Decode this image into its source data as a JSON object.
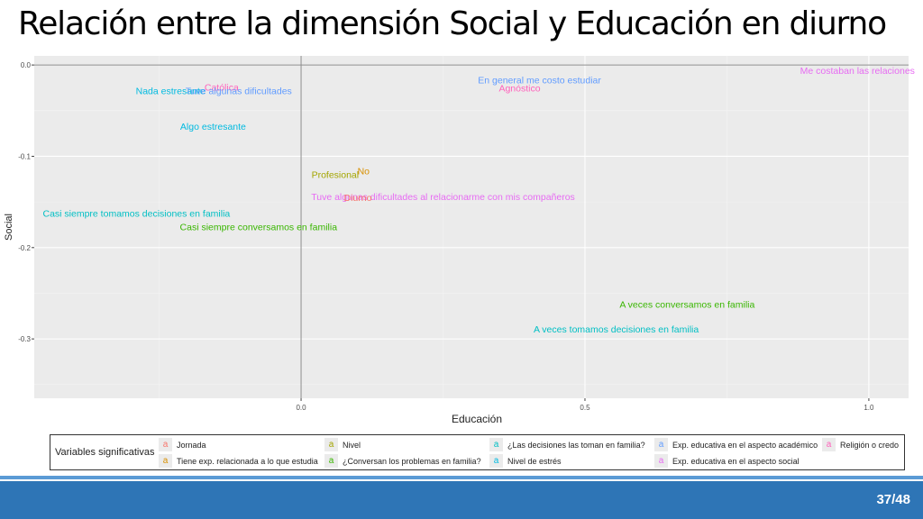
{
  "title": "Relación entre la dimensión Social y Educación en diurno",
  "page_number": "37/48",
  "chart_data": {
    "type": "scatter",
    "xlabel": "Educación",
    "ylabel": "Social",
    "xlim": [
      -0.47,
      1.07
    ],
    "ylim": [
      -0.365,
      0.01
    ],
    "x_ticks": [
      0.0,
      0.5,
      1.0
    ],
    "x_tick_labels": [
      "0.0",
      "0.5",
      "1.0"
    ],
    "y_ticks": [
      0.0,
      -0.1,
      -0.2,
      -0.3
    ],
    "y_tick_labels": [
      "0.0",
      "-0.1",
      "-0.2",
      "-0.3"
    ],
    "grid": true,
    "reference_lines": {
      "x": 0,
      "y": 0
    },
    "legend_position": "bottom",
    "legend_title": "Variables significativas",
    "legend_key_glyph": "a",
    "groups": [
      {
        "name": "Jornada",
        "color": "#f8766d"
      },
      {
        "name": "Tiene exp. relacionada a lo que estudia",
        "color": "#d89000"
      },
      {
        "name": "Nivel",
        "color": "#a3a500"
      },
      {
        "name": "¿Conversan los problemas en familia?",
        "color": "#39b600"
      },
      {
        "name": "¿Las decisiones las toman en familia?",
        "color": "#00bfc4"
      },
      {
        "name": "Nivel de estrés",
        "color": "#00bae0"
      },
      {
        "name": "Exp. educativa en el aspecto académico",
        "color": "#619cff"
      },
      {
        "name": "Exp. educativa en el aspecto social",
        "color": "#e76bf3"
      },
      {
        "name": "Religión o credo",
        "color": "#ff62bc"
      }
    ],
    "points": [
      {
        "label": "Me costaban las relaciones",
        "x": 0.98,
        "y": -0.006,
        "group": "Exp. educativa en el aspecto social"
      },
      {
        "label": "En general me costo estudiar",
        "x": 0.42,
        "y": -0.016,
        "group": "Exp. educativa en el aspecto académico"
      },
      {
        "label": "Agnóstico",
        "x": 0.385,
        "y": -0.025,
        "group": "Religión o credo"
      },
      {
        "label": "Católica",
        "x": -0.14,
        "y": -0.024,
        "group": "Religión o credo"
      },
      {
        "label": "Nada estresante",
        "x": -0.23,
        "y": -0.028,
        "group": "Nivel de estrés"
      },
      {
        "label": "Tuve algunas dificultades",
        "x": -0.11,
        "y": -0.028,
        "group": "Exp. educativa en el aspecto académico"
      },
      {
        "label": "Algo estresante",
        "x": -0.155,
        "y": -0.067,
        "group": "Nivel de estrés"
      },
      {
        "label": "Profesional",
        "x": 0.06,
        "y": -0.12,
        "group": "Nivel"
      },
      {
        "label": "No",
        "x": 0.11,
        "y": -0.116,
        "group": "Tiene exp. relacionada a lo que estudia"
      },
      {
        "label": "Tuve algunas dificultades al relacionarme con mis compañeros",
        "x": 0.25,
        "y": -0.144,
        "group": "Exp. educativa en el aspecto social"
      },
      {
        "label": "Diurno",
        "x": 0.1,
        "y": -0.145,
        "group": "Jornada"
      },
      {
        "label": "Casi siempre tomamos decisiones en familia",
        "x": -0.29,
        "y": -0.162,
        "group": "¿Las decisiones las toman en familia?"
      },
      {
        "label": "Casi siempre conversamos en familia",
        "x": -0.075,
        "y": -0.177,
        "group": "¿Conversan los problemas en familia?"
      },
      {
        "label": "A veces conversamos en familia",
        "x": 0.68,
        "y": -0.262,
        "group": "¿Conversan los problemas en familia?"
      },
      {
        "label": "A veces tomamos decisiones en familia",
        "x": 0.555,
        "y": -0.289,
        "group": "¿Las decisiones las toman en familia?"
      }
    ]
  },
  "legend_items": [
    {
      "glyph": "a",
      "label": "Jornada",
      "color": "#f8766d"
    },
    {
      "glyph": "a",
      "label": "Tiene exp. relacionada a lo que estudia",
      "color": "#d89000"
    },
    {
      "glyph": "a",
      "label": "Nivel",
      "color": "#a3a500"
    },
    {
      "glyph": "a",
      "label": "¿Conversan los problemas en familia?",
      "color": "#39b600"
    },
    {
      "glyph": "a",
      "label": "¿Las decisiones las toman en familia?",
      "color": "#00bfc4"
    },
    {
      "glyph": "a",
      "label": "Nivel de estrés",
      "color": "#00bae0"
    },
    {
      "glyph": "a",
      "label": "Exp. educativa en el aspecto académico",
      "color": "#619cff"
    },
    {
      "glyph": "a",
      "label": "Exp. educativa en el aspecto social",
      "color": "#e76bf3"
    },
    {
      "glyph": "a",
      "label": "Religión o credo",
      "color": "#ff62bc"
    }
  ]
}
